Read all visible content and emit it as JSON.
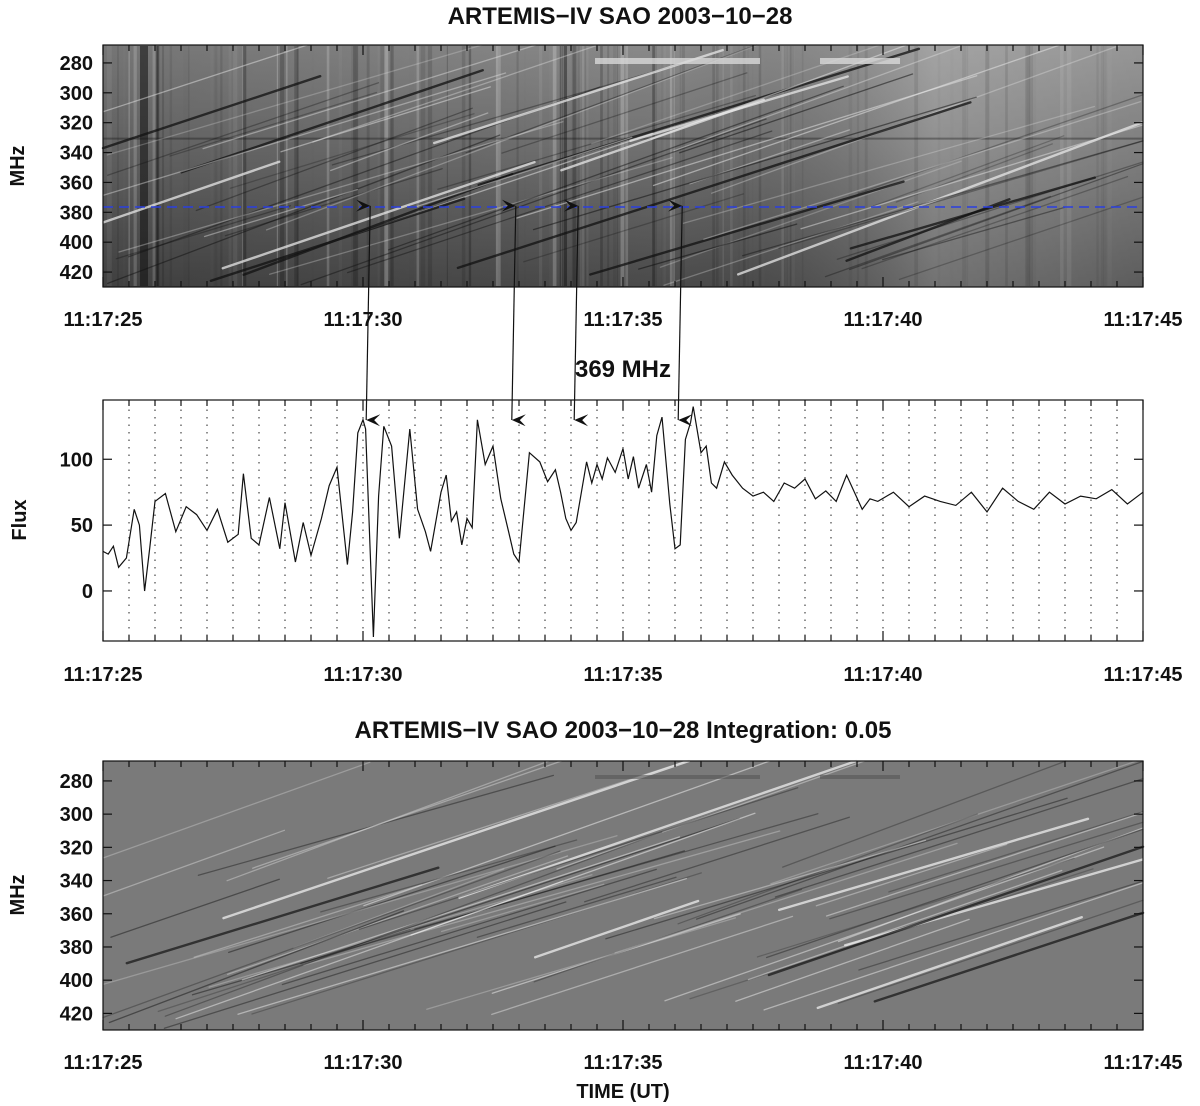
{
  "chart_data": [
    {
      "type": "heatmap",
      "title": "ARTEMIS−IV  SAO 2003−10−28",
      "xlabel": "",
      "ylabel": "MHz",
      "x_ticks": [
        "11:17:25",
        "11:17:30",
        "11:17:35",
        "11:17:40",
        "11:17:45"
      ],
      "y_ticks": [
        280,
        300,
        320,
        340,
        360,
        380,
        400,
        420
      ],
      "xlim": [
        "11:17:25",
        "11:17:45"
      ],
      "ylim": [
        430,
        268
      ],
      "marker_line_mhz": 369,
      "marker_times_s": [
        30.1,
        32.9,
        34.1,
        36.1
      ],
      "colormap": "grayscale dynamic spectrum with drifting fiber bursts"
    },
    {
      "type": "line",
      "title": "369 MHz",
      "xlabel": "",
      "ylabel": "Flux",
      "x_ticks": [
        "11:17:25",
        "11:17:30",
        "11:17:35",
        "11:17:40",
        "11:17:45"
      ],
      "y_ticks": [
        0,
        50,
        100
      ],
      "xlim": [
        "11:17:25",
        "11:17:45"
      ],
      "ylim": [
        -38,
        145
      ],
      "grid": "vertical dotted every 0.5 s",
      "series": [
        {
          "x": [
            25.0,
            25.1,
            25.2,
            25.3,
            25.45,
            25.6,
            25.7,
            25.8,
            25.9,
            26.0,
            26.2,
            26.4,
            26.6,
            26.8,
            27.0,
            27.2,
            27.4,
            27.6,
            27.7,
            27.85,
            28.0,
            28.2,
            28.4,
            28.5,
            28.7,
            28.85,
            29.0,
            29.2,
            29.35,
            29.5,
            29.7,
            29.8,
            29.9,
            30.0,
            30.05,
            30.2,
            30.3,
            30.4,
            30.55,
            30.7,
            30.9,
            31.05,
            31.2,
            31.3,
            31.5,
            31.6,
            31.7,
            31.8,
            31.9,
            32.0,
            32.1,
            32.2,
            32.35,
            32.5,
            32.65,
            32.8,
            32.9,
            33.0,
            33.2,
            33.4,
            33.55,
            33.7,
            33.8,
            33.9,
            34.0,
            34.1,
            34.2,
            34.3,
            34.4,
            34.5,
            34.6,
            34.7,
            34.85,
            35.0,
            35.1,
            35.2,
            35.3,
            35.45,
            35.55,
            35.65,
            35.75,
            35.9,
            36.0,
            36.1,
            36.2,
            36.3,
            36.35,
            36.5,
            36.6,
            36.7,
            36.8,
            36.95,
            37.1,
            37.3,
            37.5,
            37.7,
            37.9,
            38.1,
            38.3,
            38.5,
            38.7,
            38.9,
            39.1,
            39.3,
            39.6,
            39.75,
            39.9,
            40.2,
            40.5,
            40.8,
            41.1,
            41.4,
            41.7,
            42.0,
            42.3,
            42.6,
            42.9,
            43.2,
            43.5,
            43.8,
            44.1,
            44.4,
            44.7,
            45.0
          ],
          "values": [
            30,
            28,
            34,
            18,
            25,
            62,
            50,
            0,
            33,
            68,
            74,
            45,
            64,
            58,
            46,
            62,
            37,
            43,
            89,
            40,
            35,
            71,
            32,
            67,
            22,
            52,
            27,
            55,
            80,
            94,
            20,
            60,
            120,
            130,
            123,
            -35,
            72,
            125,
            110,
            40,
            123,
            62,
            45,
            30,
            75,
            88,
            53,
            60,
            35,
            55,
            48,
            130,
            96,
            110,
            70,
            45,
            28,
            22,
            105,
            98,
            83,
            92,
            75,
            55,
            46,
            52,
            75,
            98,
            82,
            96,
            85,
            101,
            90,
            108,
            85,
            102,
            78,
            96,
            75,
            118,
            132,
            66,
            32,
            35,
            115,
            128,
            140,
            105,
            110,
            82,
            78,
            98,
            88,
            78,
            72,
            75,
            68,
            82,
            78,
            85,
            70,
            76,
            68,
            88,
            62,
            70,
            68,
            75,
            64,
            72,
            68,
            65,
            75,
            60,
            78,
            68,
            62,
            75,
            66,
            72,
            70,
            77,
            66,
            75
          ]
        }
      ]
    },
    {
      "type": "heatmap",
      "title": "ARTEMIS−IV  SAO 2003−10−28   Integration: 0.05",
      "xlabel": "TIME (UT)",
      "ylabel": "MHz",
      "x_ticks": [
        "11:17:25",
        "11:17:30",
        "11:17:35",
        "11:17:40",
        "11:17:45"
      ],
      "y_ticks": [
        280,
        300,
        320,
        340,
        360,
        380,
        400,
        420
      ],
      "xlim": [
        "11:17:25",
        "11:17:45"
      ],
      "ylim": [
        430,
        268
      ],
      "colormap": "grayscale difference spectrum"
    }
  ]
}
